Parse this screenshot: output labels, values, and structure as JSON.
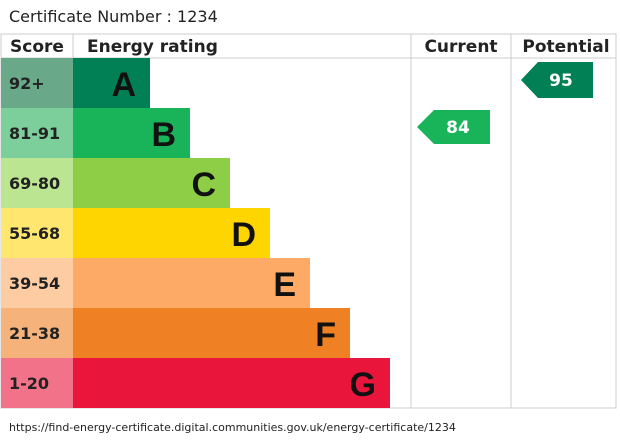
{
  "header": {
    "title": "Certificate Number : 1234"
  },
  "columns": {
    "score": "Score",
    "rating": "Energy rating",
    "current": "Current",
    "potential": "Potential"
  },
  "bands": [
    {
      "score": "92+",
      "letter": "A"
    },
    {
      "score": "81-91",
      "letter": "B"
    },
    {
      "score": "69-80",
      "letter": "C"
    },
    {
      "score": "55-68",
      "letter": "D"
    },
    {
      "score": "39-54",
      "letter": "E"
    },
    {
      "score": "21-38",
      "letter": "F"
    },
    {
      "score": "1-20",
      "letter": "G"
    }
  ],
  "current": 84,
  "potential": 95,
  "footer": {
    "url": "https://find-energy-certificate.digital.communities.gov.uk/energy-certificate/1234"
  }
}
